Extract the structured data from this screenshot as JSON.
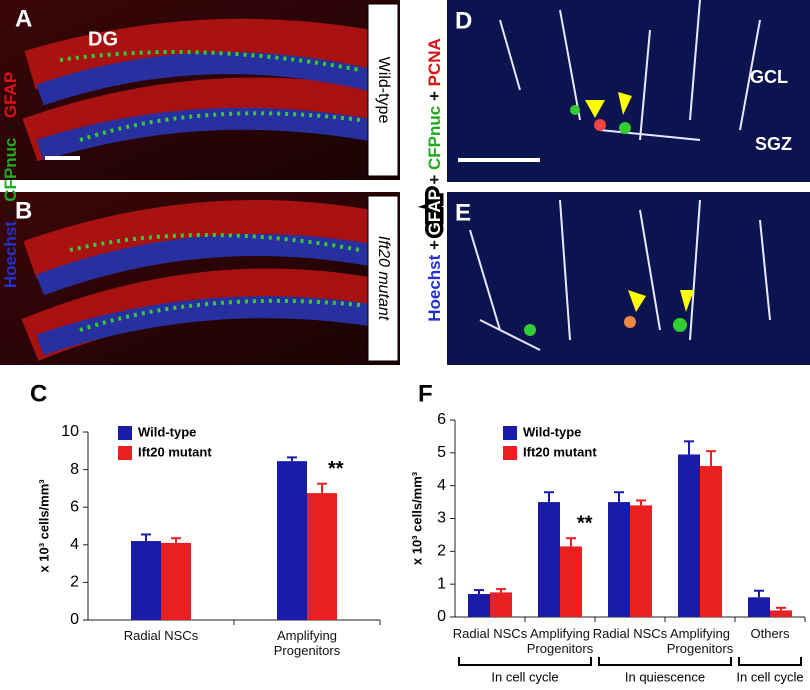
{
  "panels": [
    {
      "letter": "A",
      "text": "DG",
      "side_label": "Wild-type"
    },
    {
      "letter": "B",
      "side_label": "Ift20 mutant"
    },
    {
      "letter": "D",
      "text": "GCL",
      "text2": "SGZ"
    },
    {
      "letter": "E"
    }
  ],
  "stain_labels": {
    "left": [
      {
        "text": "Hoechst",
        "color": "#2233cc"
      },
      {
        "text": " + ",
        "color": "#111111"
      },
      {
        "text": "CFPnuc",
        "color": "#22aa22"
      },
      {
        "text": " + ",
        "color": "#111111"
      },
      {
        "text": "GFAP",
        "color": "#dd1111"
      }
    ],
    "right": [
      {
        "text": "Hoechst",
        "color": "#2233cc"
      },
      {
        "text": " + ",
        "color": "#111111"
      },
      {
        "text": "GFAP",
        "color": "#ffffff",
        "boxed": true
      },
      {
        "text": " + ",
        "color": "#111111"
      },
      {
        "text": "CFPnuc",
        "color": "#22aa22"
      },
      {
        "text": " + ",
        "color": "#111111"
      },
      {
        "text": "PCNA",
        "color": "#dd1111"
      }
    ]
  },
  "chart_data": [
    {
      "type": "bar",
      "label": "C",
      "ylabel": "x 10³ cells/mm³",
      "categories": [
        "Radial NSCs",
        "Amplifying Progenitors"
      ],
      "series": [
        {
          "name": "Wild-type",
          "color": "#1a1aa8",
          "values": [
            4.2,
            8.45
          ],
          "errors": [
            0.35,
            0.2
          ]
        },
        {
          "name": "Ift20 mutant",
          "color": "#e82020",
          "values": [
            4.1,
            6.75
          ],
          "errors": [
            0.25,
            0.5
          ]
        }
      ],
      "annotation": "**",
      "ylim": [
        0,
        10
      ],
      "yticks": [
        0,
        2,
        4,
        6,
        8,
        10
      ]
    },
    {
      "type": "bar",
      "label": "F",
      "ylabel": "x 10³ cells/mm³",
      "categories": [
        "Radial NSCs",
        "Amplifying Progenitors",
        "Radial NSCs",
        "Amplifying Progenitors",
        "Others"
      ],
      "groups": [
        "In cell cycle",
        "In quiescence",
        "In cell cycle"
      ],
      "series": [
        {
          "name": "Wild-type",
          "color": "#1a1aa8",
          "values": [
            0.7,
            3.5,
            3.5,
            4.95,
            0.6
          ],
          "errors": [
            0.12,
            0.3,
            0.3,
            0.4,
            0.2
          ]
        },
        {
          "name": "Ift20 mutant",
          "color": "#e82020",
          "values": [
            0.75,
            2.15,
            3.4,
            4.6,
            0.2
          ],
          "errors": [
            0.1,
            0.25,
            0.15,
            0.45,
            0.08
          ]
        }
      ],
      "annotation": "**",
      "ylim": [
        0,
        6
      ],
      "yticks": [
        0,
        1,
        2,
        3,
        4,
        5,
        6
      ]
    }
  ]
}
